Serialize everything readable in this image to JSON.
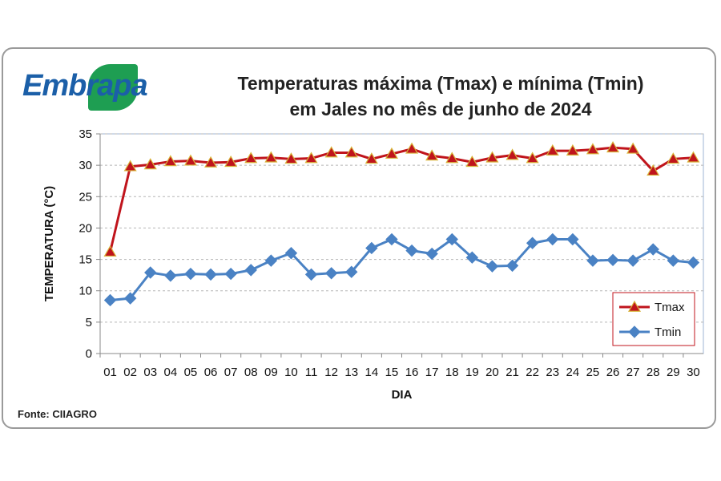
{
  "brand": {
    "logo_text": "Embrapa"
  },
  "header": {
    "title_line1": "Temperaturas máxima (Tmax) e mínima (Tmin)",
    "title_line2": "em Jales no mês de junho de 2024"
  },
  "footer": {
    "source": "Fonte: CIIAGRO"
  },
  "chart_data": {
    "type": "line",
    "title": "Temperaturas máxima (Tmax) e mínima (Tmin) em Jales no mês de junho de 2024",
    "xlabel": "DIA",
    "ylabel": "TEMPERATURA (°C)",
    "ylim": [
      0,
      35
    ],
    "yticks": [
      0,
      5,
      10,
      15,
      20,
      25,
      30,
      35
    ],
    "grid": true,
    "legend_position": "bottom-right",
    "categories": [
      "01",
      "02",
      "03",
      "04",
      "05",
      "06",
      "07",
      "08",
      "09",
      "10",
      "11",
      "12",
      "13",
      "14",
      "15",
      "16",
      "17",
      "18",
      "19",
      "20",
      "21",
      "22",
      "23",
      "24",
      "25",
      "26",
      "27",
      "28",
      "29",
      "30"
    ],
    "series": [
      {
        "name": "Tmax",
        "color": "#c0141c",
        "marker": "triangle",
        "values": [
          16.2,
          29.8,
          30.1,
          30.6,
          30.7,
          30.4,
          30.5,
          31.1,
          31.2,
          31.0,
          31.1,
          32.0,
          32.0,
          31.0,
          31.8,
          32.6,
          31.5,
          31.1,
          30.5,
          31.2,
          31.6,
          31.1,
          32.3,
          32.3,
          32.5,
          32.8,
          32.6,
          29.1,
          31.0,
          31.2
        ]
      },
      {
        "name": "Tmin",
        "color": "#4a82c4",
        "marker": "diamond",
        "values": [
          8.5,
          8.8,
          12.9,
          12.4,
          12.7,
          12.6,
          12.7,
          13.3,
          14.8,
          16.0,
          12.6,
          12.8,
          13.0,
          16.8,
          18.2,
          16.4,
          15.9,
          18.2,
          15.3,
          13.9,
          14.0,
          17.6,
          18.2,
          18.2,
          14.8,
          14.9,
          14.8,
          16.6,
          14.8,
          14.5
        ]
      }
    ]
  }
}
